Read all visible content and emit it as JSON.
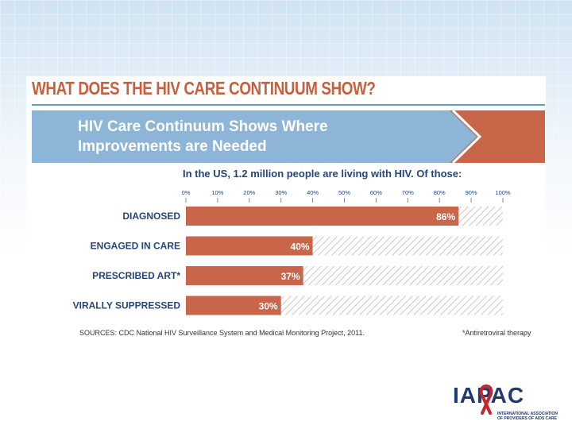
{
  "heading": "WHAT DOES THE HIV CARE CONTINUUM SHOW?",
  "banner": {
    "line1": "HIV Care Continuum Shows Where",
    "line2": "Improvements are Needed"
  },
  "subtitle": "In the US, 1.2 million people are living with HIV.  Of those:",
  "chart_data": {
    "type": "bar",
    "orientation": "horizontal",
    "title": "HIV Care Continuum Shows Where Improvements are Needed",
    "categories": [
      "DIAGNOSED",
      "ENGAGED IN CARE",
      "PRESCRIBED ART*",
      "VIRALLY SUPPRESSED"
    ],
    "values": [
      86,
      40,
      37,
      30
    ],
    "value_labels": [
      "86%",
      "40%",
      "37%",
      "30%"
    ],
    "tick_labels": [
      "0%",
      "10%",
      "20%",
      "30%",
      "40%",
      "50%",
      "60%",
      "70%",
      "80%",
      "90%",
      "100%"
    ],
    "xlim": [
      0,
      100
    ],
    "xlabel": "",
    "ylabel": "",
    "unit": "%",
    "bar_color": "#c9664a",
    "remainder_style": "hatched"
  },
  "sources": "SOURCES: CDC National HIV Surveillance System and Medical Monitoring Project, 2011.",
  "footnote": "*Antiretroviral therapy",
  "logo": {
    "letters": "IAPAC",
    "sub_line1": "INTERNATIONAL ASSOCIATION",
    "sub_line2": "OF PROVIDERS OF AIDS CARE"
  },
  "colors": {
    "heading": "#c8603e",
    "banner_blue": "#8db5d8",
    "banner_orange": "#c9664a",
    "navy": "#25467a"
  }
}
